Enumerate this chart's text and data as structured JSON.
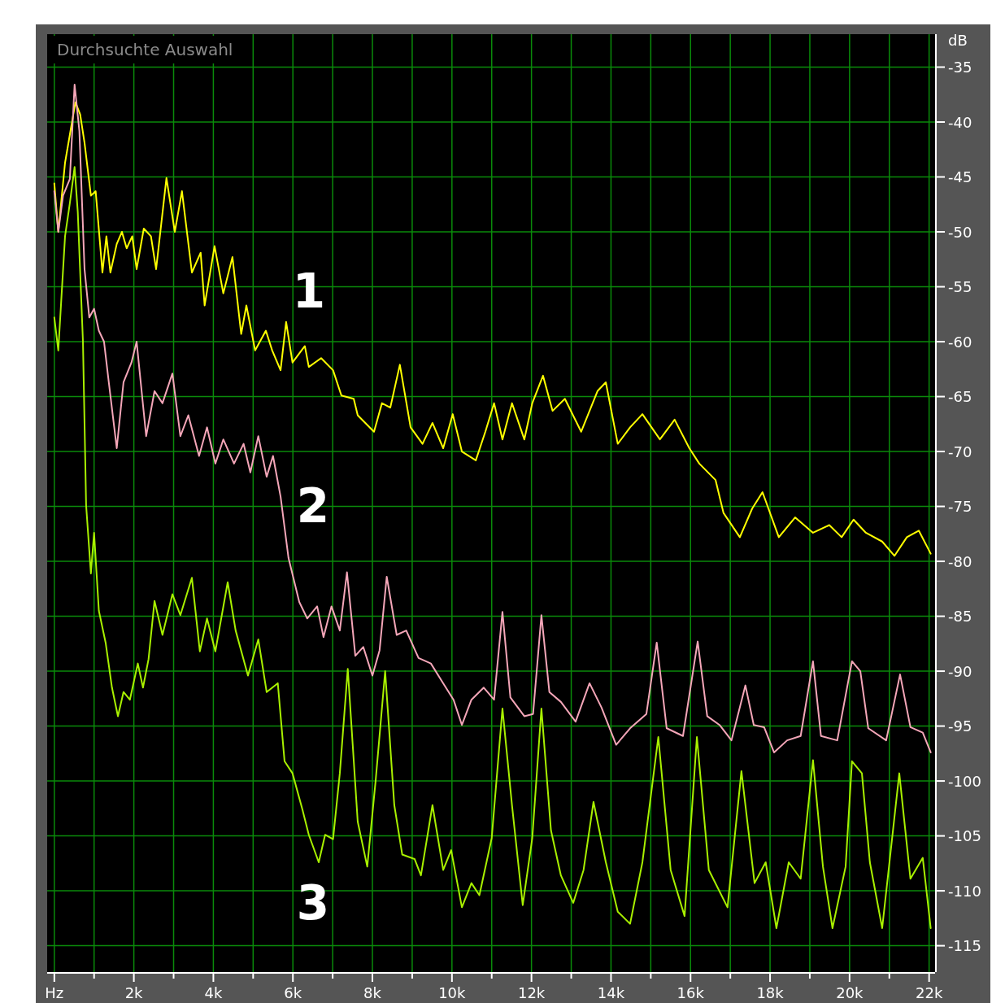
{
  "chart_data": {
    "type": "line",
    "title": "Durchsuchte Auswahl",
    "ylabel": "dB",
    "xlim": [
      -180,
      22150
    ],
    "ylim": [
      -117.4,
      -32
    ],
    "xticks": [
      {
        "value": 0,
        "label": "Hz"
      },
      {
        "value": 1000,
        "label": null
      },
      {
        "value": 2000,
        "label": "2k"
      },
      {
        "value": 3000,
        "label": null
      },
      {
        "value": 4000,
        "label": "4k"
      },
      {
        "value": 5000,
        "label": null
      },
      {
        "value": 6000,
        "label": "6k"
      },
      {
        "value": 7000,
        "label": null
      },
      {
        "value": 8000,
        "label": "8k"
      },
      {
        "value": 9000,
        "label": null
      },
      {
        "value": 10000,
        "label": "10k"
      },
      {
        "value": 11000,
        "label": null
      },
      {
        "value": 12000,
        "label": "12k"
      },
      {
        "value": 13000,
        "label": null
      },
      {
        "value": 14000,
        "label": "14k"
      },
      {
        "value": 15000,
        "label": null
      },
      {
        "value": 16000,
        "label": "16k"
      },
      {
        "value": 17000,
        "label": null
      },
      {
        "value": 18000,
        "label": "18k"
      },
      {
        "value": 19000,
        "label": null
      },
      {
        "value": 20000,
        "label": "20k"
      },
      {
        "value": 21000,
        "label": null
      },
      {
        "value": 22000,
        "label": "22k"
      }
    ],
    "yticks": [
      -35,
      -40,
      -45,
      -50,
      -55,
      -60,
      -65,
      -70,
      -75,
      -80,
      -85,
      -90,
      -95,
      -100,
      -105,
      -110,
      -115
    ],
    "grid": true,
    "marker": "none",
    "line_style": "solid",
    "series": [
      {
        "name": "1",
        "color": "#ffff00",
        "x": [
          0,
          100,
          270,
          530,
          650,
          760,
          920,
          1040,
          1210,
          1310,
          1410,
          1570,
          1700,
          1820,
          1960,
          2070,
          2250,
          2430,
          2560,
          2820,
          3030,
          3210,
          3460,
          3680,
          3780,
          4030,
          4250,
          4480,
          4700,
          4830,
          5050,
          5320,
          5480,
          5690,
          5830,
          5990,
          6300,
          6400,
          6710,
          7010,
          7220,
          7530,
          7630,
          8040,
          8240,
          8450,
          8690,
          8960,
          9260,
          9510,
          9780,
          10020,
          10250,
          10600,
          10840,
          11060,
          11270,
          11510,
          11820,
          12020,
          12290,
          12530,
          12840,
          13250,
          13660,
          13870,
          14170,
          14480,
          14790,
          15230,
          15600,
          15970,
          16220,
          16630,
          16830,
          17240,
          17550,
          17810,
          18220,
          18630,
          19080,
          19490,
          19800,
          20100,
          20410,
          20820,
          21130,
          21440,
          21740,
          22040
        ],
        "values": [
          -45.6,
          -50,
          -43.7,
          -38.2,
          -39.3,
          -41.9,
          -46.7,
          -46.3,
          -53.7,
          -50.4,
          -53.7,
          -51.1,
          -50,
          -51.5,
          -50.4,
          -53.4,
          -49.7,
          -50.4,
          -53.4,
          -45.1,
          -50,
          -46.3,
          -53.7,
          -51.9,
          -56.7,
          -51.3,
          -55.6,
          -52.3,
          -59.3,
          -56.7,
          -60.8,
          -59,
          -60.8,
          -62.6,
          -58.2,
          -61.9,
          -60.4,
          -62.3,
          -61.5,
          -62.6,
          -64.9,
          -65.2,
          -66.7,
          -68.2,
          -65.6,
          -66,
          -62.1,
          -67.8,
          -69.3,
          -67.4,
          -69.7,
          -66.6,
          -70,
          -70.8,
          -68.2,
          -65.6,
          -68.9,
          -65.6,
          -68.9,
          -65.6,
          -63.1,
          -66.3,
          -65.2,
          -68.2,
          -64.5,
          -63.7,
          -69.3,
          -67.8,
          -66.6,
          -68.9,
          -67.1,
          -69.7,
          -71.1,
          -72.6,
          -75.6,
          -77.8,
          -75.2,
          -73.7,
          -77.8,
          -76,
          -77.4,
          -76.7,
          -77.8,
          -76.2,
          -77.4,
          -78.2,
          -79.5,
          -77.8,
          -77.2,
          -79.3
        ]
      },
      {
        "name": "2",
        "color": "#f4a6b8",
        "x": [
          0,
          100,
          220,
          390,
          510,
          630,
          760,
          880,
          1000,
          1120,
          1250,
          1370,
          1570,
          1740,
          1940,
          2070,
          2310,
          2520,
          2720,
          2970,
          3170,
          3370,
          3640,
          3840,
          4050,
          4250,
          4520,
          4760,
          4930,
          5130,
          5340,
          5500,
          5690,
          5890,
          6160,
          6360,
          6610,
          6770,
          6970,
          7180,
          7360,
          7570,
          7770,
          8000,
          8180,
          8360,
          8610,
          8850,
          9160,
          9470,
          9780,
          10040,
          10250,
          10490,
          10800,
          11060,
          11270,
          11470,
          11820,
          12040,
          12250,
          12450,
          12740,
          13110,
          13460,
          13760,
          14130,
          14480,
          14890,
          15150,
          15400,
          15810,
          16180,
          16420,
          16730,
          17030,
          17380,
          17590,
          17850,
          18100,
          18430,
          18770,
          19080,
          19280,
          19690,
          20060,
          20270,
          20470,
          20920,
          21270,
          21530,
          21840,
          22040
        ],
        "values": [
          -46.3,
          -50,
          -46.7,
          -45.2,
          -36.6,
          -40.8,
          -53.4,
          -57.8,
          -57,
          -59,
          -60,
          -63.7,
          -69.7,
          -63.7,
          -61.9,
          -60,
          -68.6,
          -64.5,
          -65.6,
          -62.9,
          -68.6,
          -66.7,
          -70.4,
          -67.8,
          -71.1,
          -68.9,
          -71.1,
          -69.3,
          -71.9,
          -68.6,
          -72.3,
          -70.4,
          -74.1,
          -79.7,
          -83.7,
          -85.2,
          -84.1,
          -86.9,
          -84.1,
          -86.3,
          -81,
          -88.6,
          -87.8,
          -90.4,
          -88.1,
          -81.4,
          -86.7,
          -86.3,
          -88.8,
          -89.3,
          -91.1,
          -92.6,
          -94.9,
          -92.6,
          -91.5,
          -92.6,
          -84.6,
          -92.4,
          -94.1,
          -93.9,
          -84.9,
          -91.9,
          -92.8,
          -94.6,
          -91.1,
          -93.3,
          -96.7,
          -95.2,
          -93.9,
          -87.4,
          -95.2,
          -95.9,
          -87.3,
          -94.1,
          -94.9,
          -96.3,
          -91.3,
          -94.9,
          -95.1,
          -97.4,
          -96.3,
          -95.9,
          -89.1,
          -95.9,
          -96.3,
          -89.1,
          -90,
          -95.2,
          -96.3,
          -90.3,
          -95.1,
          -95.6,
          -97.4
        ]
      },
      {
        "name": "3",
        "color": "#a8f000",
        "x": [
          0,
          100,
          270,
          390,
          510,
          590,
          720,
          800,
          920,
          1000,
          1120,
          1290,
          1450,
          1600,
          1740,
          1900,
          2100,
          2230,
          2370,
          2520,
          2720,
          2970,
          3170,
          3460,
          3660,
          3840,
          4050,
          4360,
          4560,
          4870,
          5130,
          5340,
          5620,
          5790,
          5990,
          6240,
          6400,
          6650,
          6810,
          7010,
          7180,
          7380,
          7630,
          7870,
          8080,
          8320,
          8550,
          8750,
          9060,
          9220,
          9510,
          9780,
          9980,
          10250,
          10490,
          10690,
          11000,
          11270,
          11510,
          11780,
          12020,
          12250,
          12490,
          12740,
          13050,
          13310,
          13560,
          13870,
          14170,
          14480,
          14790,
          15190,
          15500,
          15850,
          16160,
          16460,
          16930,
          17280,
          17610,
          17890,
          18160,
          18470,
          18770,
          19080,
          19330,
          19570,
          19900,
          20060,
          20310,
          20510,
          20820,
          21250,
          21530,
          21840,
          22040
        ],
        "values": [
          -57.8,
          -60.8,
          -50.4,
          -47.4,
          -44.1,
          -48.2,
          -60,
          -74.9,
          -81.1,
          -77.4,
          -84.5,
          -87.4,
          -91.5,
          -94.1,
          -91.9,
          -92.6,
          -89.3,
          -91.5,
          -88.9,
          -83.6,
          -86.7,
          -83,
          -84.9,
          -81.5,
          -88.2,
          -85.2,
          -88.2,
          -81.9,
          -86.3,
          -90.4,
          -87.1,
          -91.9,
          -91.1,
          -98.2,
          -99.3,
          -102.6,
          -104.9,
          -107.4,
          -104.9,
          -105.3,
          -99.3,
          -89.8,
          -103.7,
          -107.8,
          -100,
          -90,
          -102.2,
          -106.7,
          -107.1,
          -108.6,
          -102.2,
          -108.1,
          -106.3,
          -111.5,
          -109.3,
          -110.4,
          -105.2,
          -93.4,
          -102.2,
          -111.3,
          -105.2,
          -93.4,
          -104.5,
          -108.6,
          -111.1,
          -108.1,
          -101.9,
          -107.4,
          -111.9,
          -113,
          -107.4,
          -96,
          -108.1,
          -112.3,
          -96,
          -108.1,
          -111.5,
          -99.1,
          -109.3,
          -107.4,
          -113.4,
          -107.4,
          -108.9,
          -98.1,
          -107.8,
          -113.4,
          -107.8,
          -98.2,
          -99.3,
          -107.4,
          -113.4,
          -99.3,
          -108.9,
          -107,
          -113.4
        ]
      }
    ]
  }
}
